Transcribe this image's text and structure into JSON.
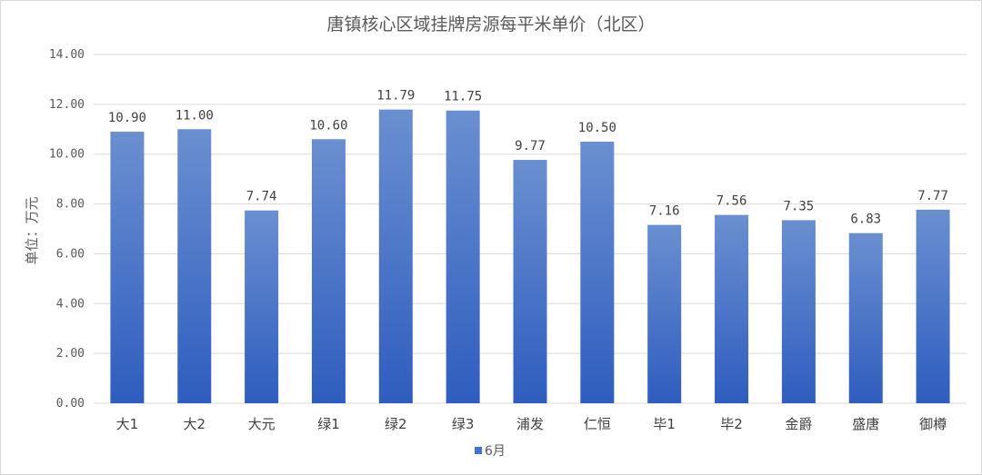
{
  "chart_data": {
    "type": "bar",
    "title": "唐镇核心区域挂牌房源每平米单价（北区）",
    "ylabel": "单位：万元",
    "xlabel": "",
    "ylim": [
      0,
      14
    ],
    "ytick_step": 2,
    "ytick_labels": [
      "0.00",
      "2.00",
      "4.00",
      "6.00",
      "8.00",
      "10.00",
      "12.00",
      "14.00"
    ],
    "grid": true,
    "legend_position": "bottom",
    "categories": [
      "大1",
      "大2",
      "大元",
      "绿1",
      "绿2",
      "绿3",
      "浦发",
      "仁恒",
      "毕1",
      "毕2",
      "金爵",
      "盛唐",
      "御樽"
    ],
    "series": [
      {
        "name": "6月",
        "color": "#4472c4",
        "values": [
          10.9,
          11.0,
          7.74,
          10.6,
          11.79,
          11.75,
          9.77,
          10.5,
          7.16,
          7.56,
          7.35,
          6.83,
          7.77
        ],
        "data_labels": [
          "10.90",
          "11.00",
          "7.74",
          "10.60",
          "11.79",
          "11.75",
          "9.77",
          "10.50",
          "7.16",
          "7.56",
          "7.35",
          "6.83",
          "7.77"
        ]
      }
    ]
  }
}
